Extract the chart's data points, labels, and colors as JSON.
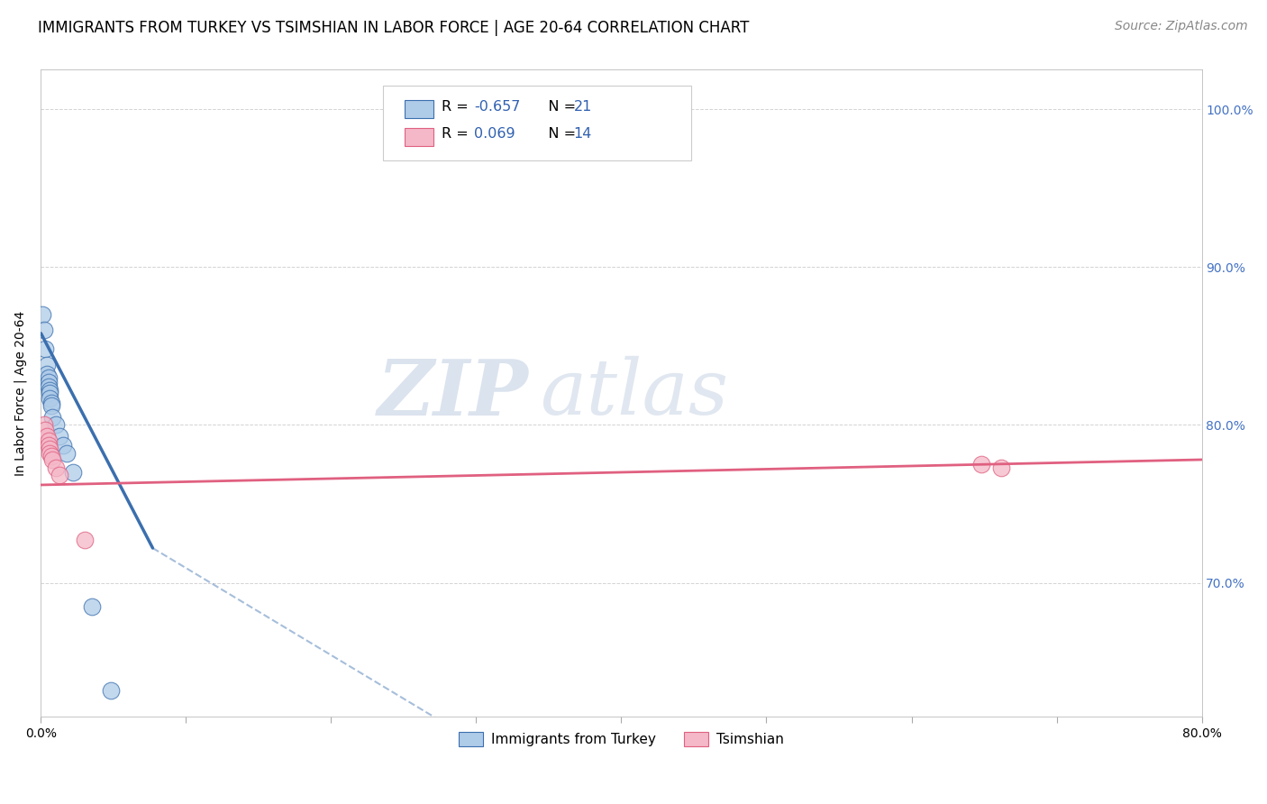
{
  "title": "IMMIGRANTS FROM TURKEY VS TSIMSHIAN IN LABOR FORCE | AGE 20-64 CORRELATION CHART",
  "source": "Source: ZipAtlas.com",
  "ylabel": "In Labor Force | Age 20-64",
  "xlim": [
    0.0,
    0.8
  ],
  "ylim": [
    0.615,
    1.025
  ],
  "ytick_positions": [
    0.7,
    0.8,
    0.9,
    1.0
  ],
  "ytick_labels": [
    "70.0%",
    "80.0%",
    "90.0%",
    "100.0%"
  ],
  "xtick_positions": [
    0.0,
    0.1,
    0.2,
    0.3,
    0.4,
    0.5,
    0.6,
    0.7,
    0.8
  ],
  "xtick_labels": [
    "0.0%",
    "",
    "",
    "",
    "",
    "",
    "",
    "",
    "80.0%"
  ],
  "watermark_zip": "ZIP",
  "watermark_atlas": "atlas",
  "blue_scatter": [
    [
      0.001,
      0.87
    ],
    [
      0.002,
      0.86
    ],
    [
      0.003,
      0.848
    ],
    [
      0.004,
      0.838
    ],
    [
      0.004,
      0.832
    ],
    [
      0.005,
      0.83
    ],
    [
      0.005,
      0.827
    ],
    [
      0.005,
      0.824
    ],
    [
      0.006,
      0.822
    ],
    [
      0.006,
      0.82
    ],
    [
      0.006,
      0.817
    ],
    [
      0.007,
      0.814
    ],
    [
      0.007,
      0.812
    ],
    [
      0.008,
      0.805
    ],
    [
      0.01,
      0.8
    ],
    [
      0.013,
      0.793
    ],
    [
      0.015,
      0.787
    ],
    [
      0.018,
      0.782
    ],
    [
      0.022,
      0.77
    ],
    [
      0.035,
      0.685
    ],
    [
      0.048,
      0.632
    ]
  ],
  "pink_scatter": [
    [
      0.002,
      0.8
    ],
    [
      0.003,
      0.797
    ],
    [
      0.004,
      0.793
    ],
    [
      0.005,
      0.79
    ],
    [
      0.005,
      0.787
    ],
    [
      0.006,
      0.785
    ],
    [
      0.006,
      0.782
    ],
    [
      0.007,
      0.78
    ],
    [
      0.008,
      0.778
    ],
    [
      0.01,
      0.773
    ],
    [
      0.013,
      0.768
    ],
    [
      0.03,
      0.727
    ],
    [
      0.648,
      0.775
    ],
    [
      0.662,
      0.773
    ]
  ],
  "blue_line_solid": {
    "x": [
      0.0,
      0.077
    ],
    "y": [
      0.858,
      0.722
    ]
  },
  "blue_line_dashed": {
    "x": [
      0.077,
      0.28
    ],
    "y": [
      0.722,
      0.61
    ]
  },
  "pink_line": {
    "x": [
      0.0,
      0.8
    ],
    "y": [
      0.762,
      0.778
    ]
  },
  "blue_color": "#3b6fae",
  "pink_color": "#e06080",
  "blue_fill": "#aecbe8",
  "pink_fill": "#f4b8c8",
  "legend_label_blue": "R = -0.657   N = 21",
  "legend_label_pink": "R =  0.069   N = 14",
  "legend_number_color": "#3060b0",
  "bottom_legend_blue": "Immigrants from Turkey",
  "bottom_legend_pink": "Tsimshian",
  "title_fontsize": 12,
  "axis_label_fontsize": 10,
  "tick_fontsize": 10,
  "source_fontsize": 10,
  "right_ytick_color": "#4472c4"
}
